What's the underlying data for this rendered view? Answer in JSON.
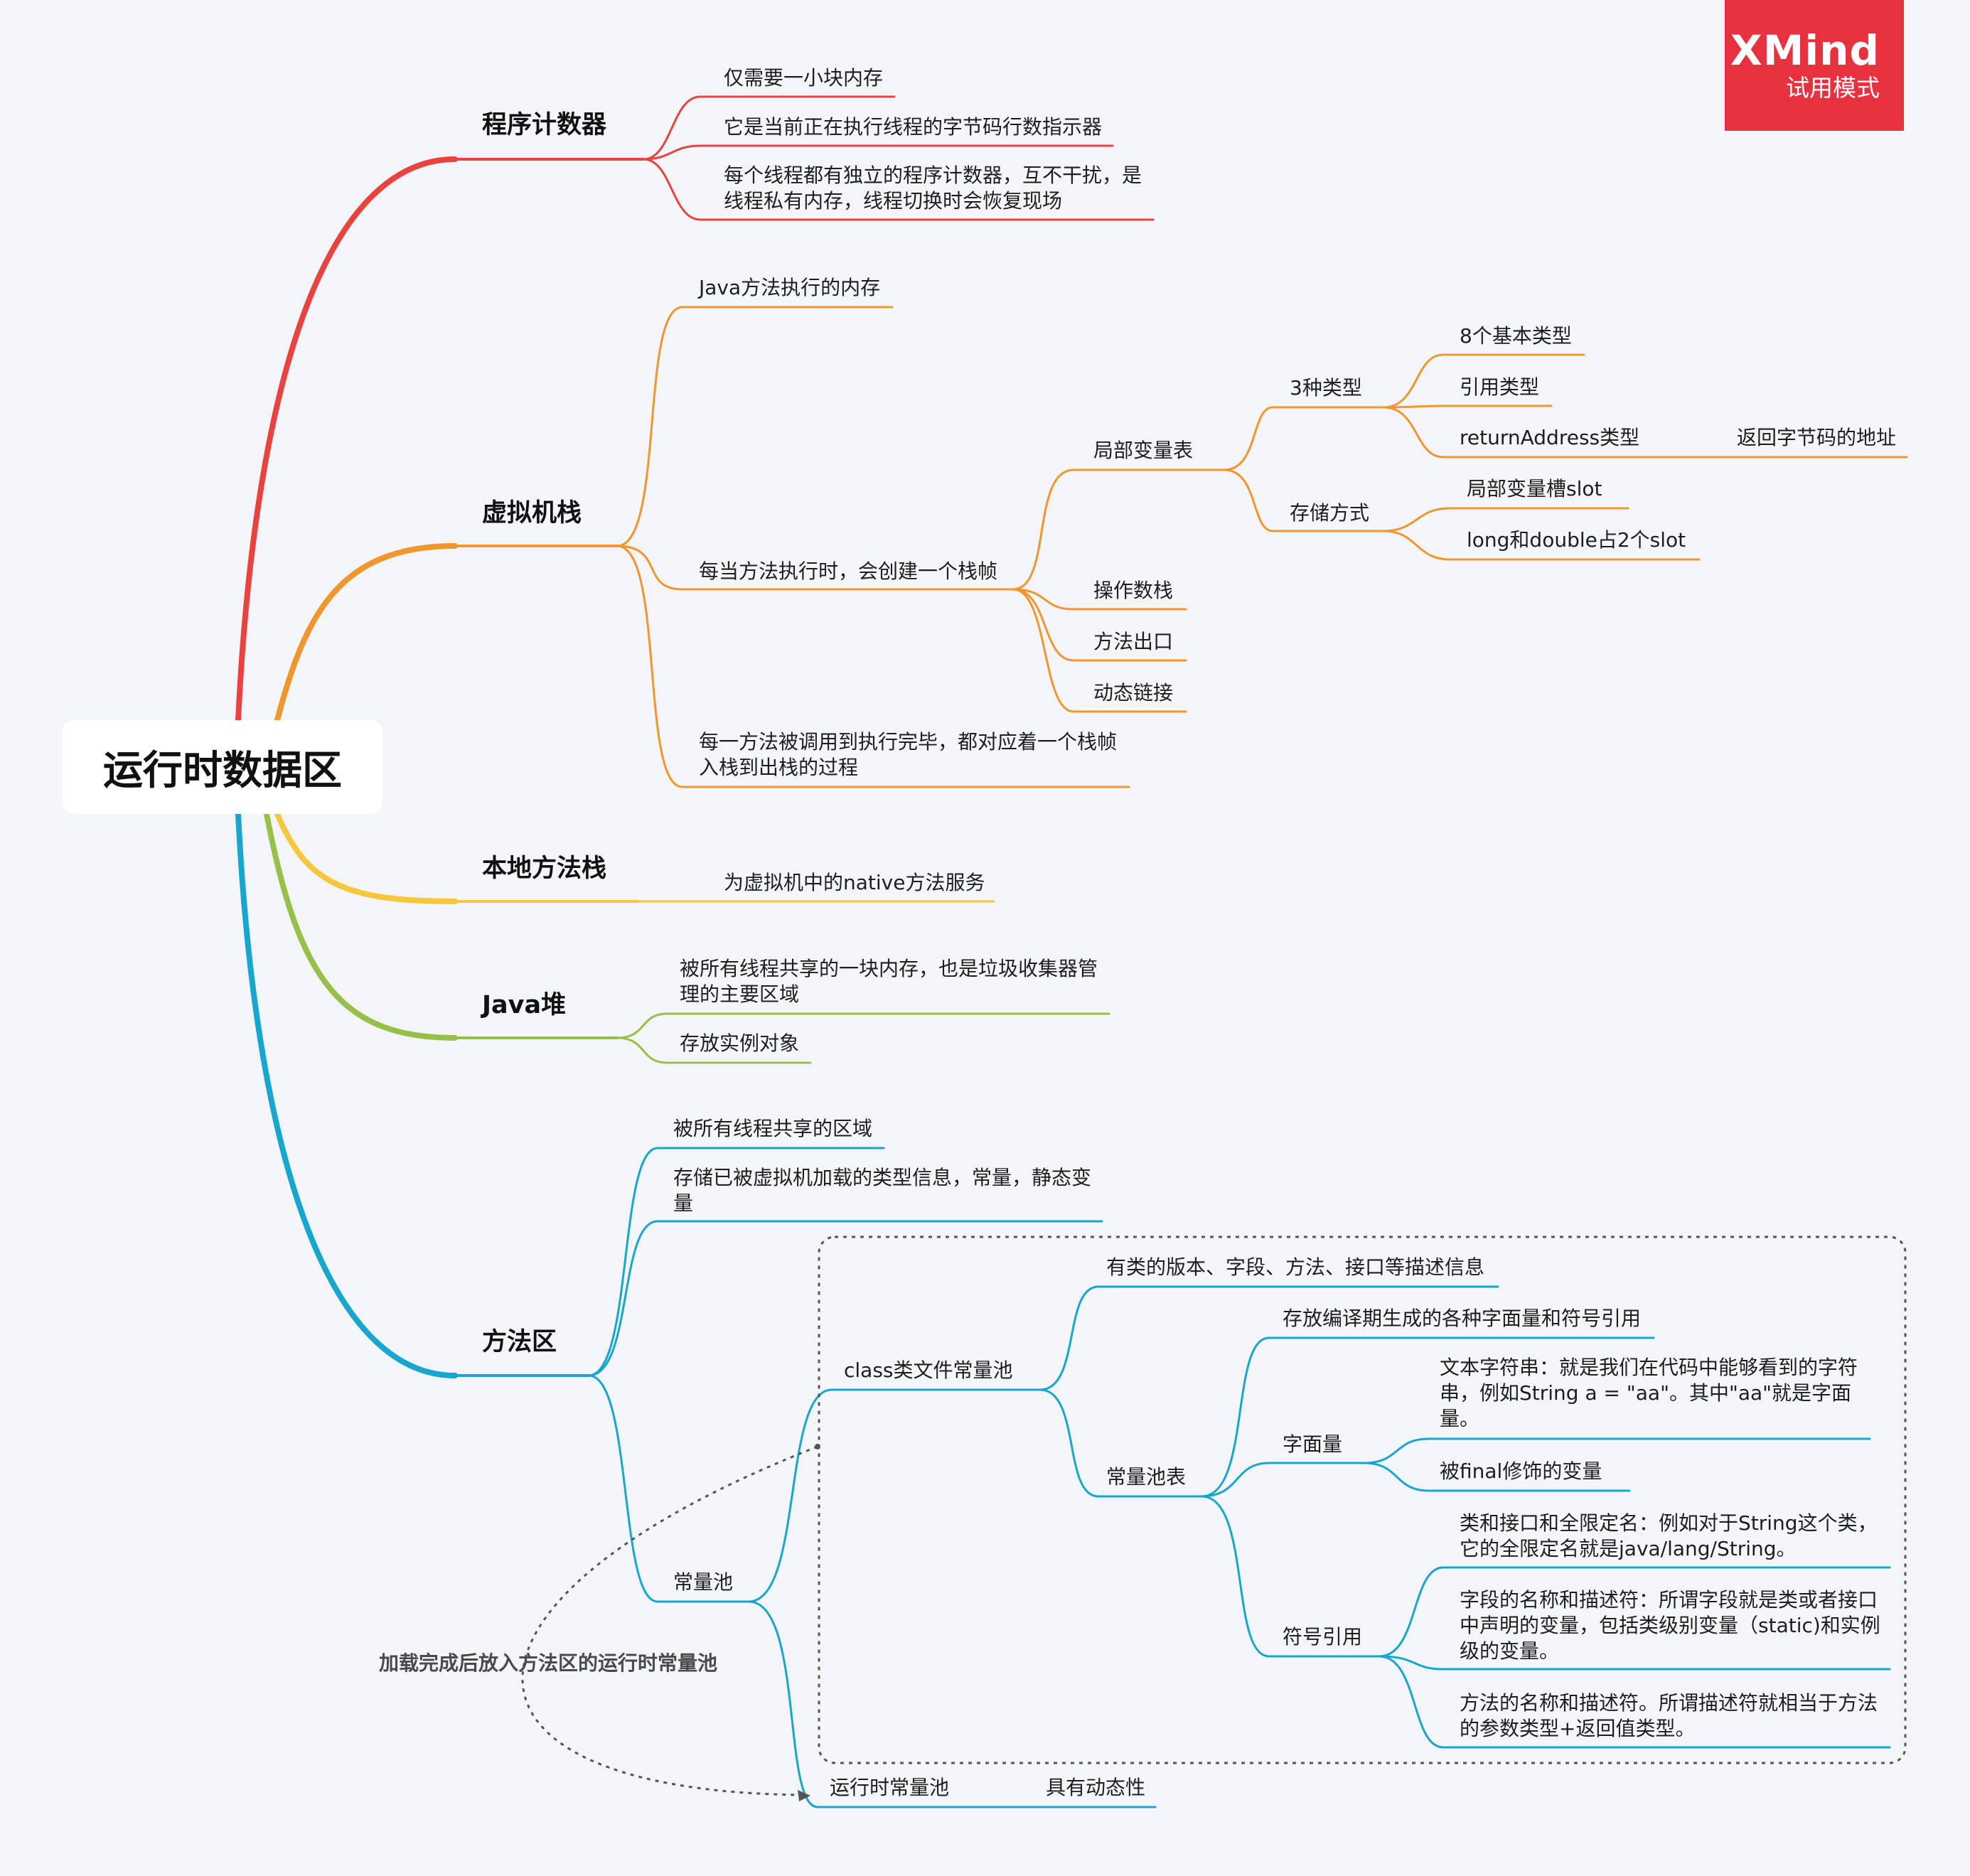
{
  "root": "运行时数据区",
  "badge": {
    "brand": "XMind",
    "mode": "试用模式"
  },
  "branches": {
    "pc": {
      "title": "程序计数器",
      "items": [
        "仅需要一小块内存",
        "它是当前正在执行线程的字节码行数指示器",
        "每个线程都有独立的程序计数器，互不干扰，是线程私有内存，线程切换时会恢复现场"
      ]
    },
    "vmstack": {
      "title": "虚拟机栈",
      "items": [
        "Java方法执行的内存",
        "每当方法执行时，会创建一个栈帧",
        "每一方法被调用到执行完毕，都对应着一个栈帧入栈到出栈的过程"
      ],
      "frame": {
        "local_var_table": "局部变量表",
        "types3": "3种类型",
        "types": [
          "8个基本类型",
          "引用类型",
          "returnAddress类型"
        ],
        "return_addr_desc": "返回字节码的地址",
        "storage": "存储方式",
        "storage_items": [
          "局部变量槽slot",
          "long和double占2个slot"
        ],
        "operand_stack": "操作数栈",
        "method_exit": "方法出口",
        "dynamic_link": "动态链接"
      }
    },
    "native": {
      "title": "本地方法栈",
      "items": [
        "为虚拟机中的native方法服务"
      ]
    },
    "heap": {
      "title": "Java堆",
      "items": [
        "被所有线程共享的一块内存，也是垃圾收集器管理的主要区域",
        "存放实例对象"
      ]
    },
    "method_area": {
      "title": "方法区",
      "items": [
        "被所有线程共享的区域",
        "存储已被虚拟机加载的类型信息，常量，静态变量"
      ],
      "const_pool": "常量池",
      "class_pool": "class类文件常量池",
      "class_desc": "有类的版本、字段、方法、接口等描述信息",
      "pool_table": "常量池表",
      "pool_table_desc": "存放编译期生成的各种字面量和符号引用",
      "literal": "字面量",
      "literal_items": [
        "文本字符串：就是我们在代码中能够看到的字符串，例如String a = \"aa\"。其中\"aa\"就是字面量。",
        "被final修饰的变量"
      ],
      "symbol_ref": "符号引用",
      "symbol_items": [
        "类和接口和全限定名：例如对于String这个类，它的全限定名就是java/lang/String。",
        "字段的名称和描述符：所谓字段就是类或者接口中声明的变量，包括类级别变量（static)和实例级的变量。",
        "方法的名称和描述符。所谓描述符就相当于方法的参数类型+返回值类型。"
      ],
      "runtime_pool": "运行时常量池",
      "runtime_desc": "具有动态性"
    }
  },
  "relationship": "加载完成后放入方法区的运行时常量池",
  "colors": {
    "red": "#e8433f",
    "orange": "#f0962f",
    "yellow": "#f7c63f",
    "green": "#97c04a",
    "blue": "#17a6cd",
    "badge": "#e8313e",
    "relationship": "#555555"
  }
}
